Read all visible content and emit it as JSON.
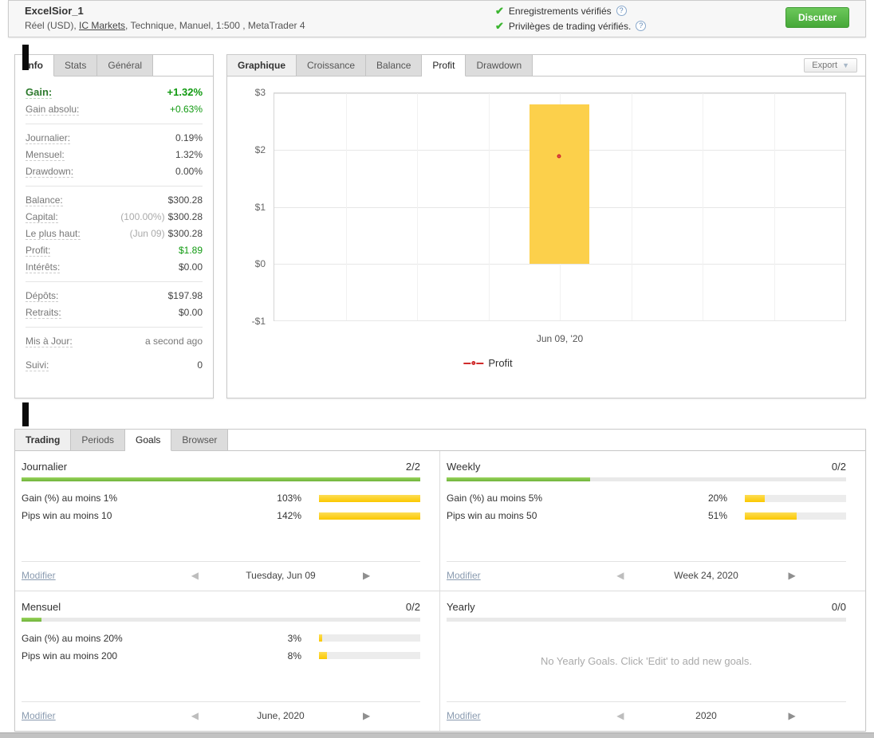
{
  "icons": {
    "check": "✔",
    "help": "?",
    "prev": "◀",
    "next": "▶",
    "caret": "▼"
  },
  "header": {
    "title": "ExcelSior_1",
    "subtitle_pre": "Réel (USD), ",
    "subtitle_link": "IC Markets",
    "subtitle_post": ", Technique, Manuel, 1:500 , MetaTrader 4",
    "verifications": [
      {
        "label": "Enregistrements vérifiés"
      },
      {
        "label": "Privilèges de trading vérifiés."
      }
    ],
    "discuss_button": "Discuter",
    "check_color": "#3cb531",
    "button_color": "#56b84b"
  },
  "info": {
    "tabs": [
      "Info",
      "Stats",
      "Général"
    ],
    "active_tab": "Info",
    "rows": [
      {
        "label": "Gain:",
        "value": "+1.32%"
      },
      {
        "label": "Gain absolu:",
        "value": "+0.63%"
      },
      {
        "label": "Journalier:",
        "value": "0.19%"
      },
      {
        "label": "Mensuel:",
        "value": "1.32%"
      },
      {
        "label": "Drawdown:",
        "value": "0.00%"
      },
      {
        "label": "Balance:",
        "value": "$300.28"
      },
      {
        "label": "Capital:",
        "prefix": "(100.00%)",
        "value": "$300.28"
      },
      {
        "label": "Le plus haut:",
        "prefix": "(Jun 09)",
        "value": "$300.28"
      },
      {
        "label": "Profit:",
        "value": "$1.89"
      },
      {
        "label": "Intérêts:",
        "value": "$0.00"
      },
      {
        "label": "Dépôts:",
        "value": "$197.98"
      },
      {
        "label": "Retraits:",
        "value": "$0.00"
      },
      {
        "label": "Mis à Jour:",
        "value": "a second ago"
      },
      {
        "label": "Suivi:",
        "value": "0"
      }
    ],
    "positive_color": "#119a11"
  },
  "chart": {
    "tabs": [
      "Graphique",
      "Croissance",
      "Balance",
      "Profit",
      "Drawdown"
    ],
    "active_tab": "Profit",
    "export_label": "Export",
    "legend_label": "Profit",
    "x_label": "Jun 09, '20"
  },
  "chart_data": {
    "type": "bar",
    "title": "Profit",
    "categories": [
      "Jun 09, '20"
    ],
    "series": [
      {
        "name": "Profit (bar)",
        "type": "bar",
        "values": [
          2.8
        ],
        "color": "#fcd04b"
      },
      {
        "name": "Profit (marker)",
        "type": "scatter",
        "values": [
          1.89
        ],
        "color": "#d02b2b"
      }
    ],
    "ylim": [
      -1,
      3
    ],
    "yticks": [
      3,
      2,
      1,
      0,
      -1
    ],
    "ytick_labels": [
      "$3",
      "$2",
      "$1",
      "$0",
      "-$1"
    ],
    "grid": true,
    "legend": {
      "label": "Profit",
      "position": "bottom"
    }
  },
  "trading": {
    "tabs": [
      "Trading",
      "Periods",
      "Goals",
      "Browser"
    ],
    "active_tab": "Goals",
    "quadrants": [
      {
        "title": "Journalier",
        "score": "2/2",
        "progress": 100,
        "goals": [
          {
            "label": "Gain (%) au moins 1%",
            "percent": "103%",
            "fill": 100
          },
          {
            "label": "Pips win au moins 10",
            "percent": "142%",
            "fill": 100
          }
        ],
        "edit": "Modifier",
        "period": "Tuesday, Jun 09"
      },
      {
        "title": "Weekly",
        "score": "0/2",
        "progress": 36,
        "goals": [
          {
            "label": "Gain (%) au moins 5%",
            "percent": "20%",
            "fill": 20
          },
          {
            "label": "Pips win au moins 50",
            "percent": "51%",
            "fill": 51
          }
        ],
        "edit": "Modifier",
        "period": "Week 24, 2020"
      },
      {
        "title": "Mensuel",
        "score": "0/2",
        "progress": 5,
        "goals": [
          {
            "label": "Gain (%) au moins 20%",
            "percent": "3%",
            "fill": 3
          },
          {
            "label": "Pips win au moins 200",
            "percent": "8%",
            "fill": 8
          }
        ],
        "edit": "Modifier",
        "period": "June, 2020"
      },
      {
        "title": "Yearly",
        "score": "0/0",
        "progress": 0,
        "goals": [],
        "empty_text": "No Yearly Goals. Click 'Edit' to add new goals.",
        "edit": "Modifier",
        "period": "2020"
      }
    ]
  }
}
